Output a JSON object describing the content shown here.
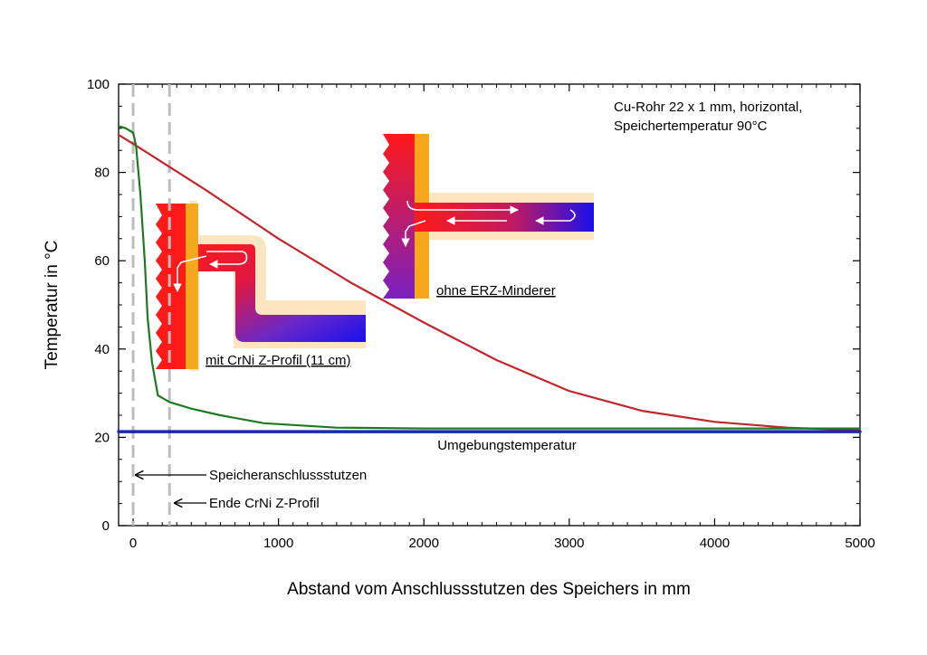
{
  "chart_data": {
    "type": "line",
    "title": "",
    "xlabel": "Abstand vom Anschlussstutzen des Speichers in mm",
    "ylabel": "Temperatur in °C",
    "xlim": [
      -100,
      5000
    ],
    "ylim": [
      0,
      100
    ],
    "x_ticks": [
      0,
      1000,
      2000,
      3000,
      4000,
      5000
    ],
    "x_tick_labels": [
      "0",
      "1000",
      "2000",
      "3000",
      "4000",
      "5000"
    ],
    "y_ticks": [
      0,
      20,
      40,
      60,
      80,
      100
    ],
    "y_tick_labels": [
      "0",
      "20",
      "40",
      "60",
      "80",
      "100"
    ],
    "grid": false,
    "series": [
      {
        "color": "#c0262b",
        "x": [
          -100,
          0,
          500,
          1000,
          1500,
          2000,
          2500,
          3000,
          3500,
          4000,
          4500,
          5000
        ],
        "y": [
          88.5,
          86.5,
          76,
          65,
          55,
          46,
          37.5,
          30.5,
          26,
          23.5,
          22.2,
          21.6
        ]
      },
      {
        "color": "#1f7a1f",
        "x": [
          -100,
          -50,
          0,
          20,
          50,
          80,
          100,
          130,
          170,
          250,
          400,
          600,
          900,
          1400,
          2000,
          3000,
          4000,
          5000
        ],
        "y": [
          90.5,
          90,
          89,
          86,
          75,
          60,
          47,
          37,
          29.5,
          28,
          26.5,
          25,
          23.2,
          22.2,
          22,
          22,
          22,
          22
        ]
      },
      {
        "color": "#1a2aa8",
        "x": [
          -100,
          5000
        ],
        "y": [
          21.3,
          21.3
        ]
      }
    ],
    "vertical_dashed_lines": [
      0,
      250
    ],
    "annotations": {
      "info_line1": "Cu-Rohr 22 x 1 mm, horizontal,",
      "info_line2": "Speichertemperatur 90°C",
      "ambient": "Umgebungstemperatur",
      "nozzle": "Speicheranschlussstutzen",
      "end_profile": "Ende CrNi Z-Profil",
      "with_profile": "mit CrNi Z-Profil (11 cm)",
      "without_reducer": "ohne ERZ-Minderer"
    }
  }
}
